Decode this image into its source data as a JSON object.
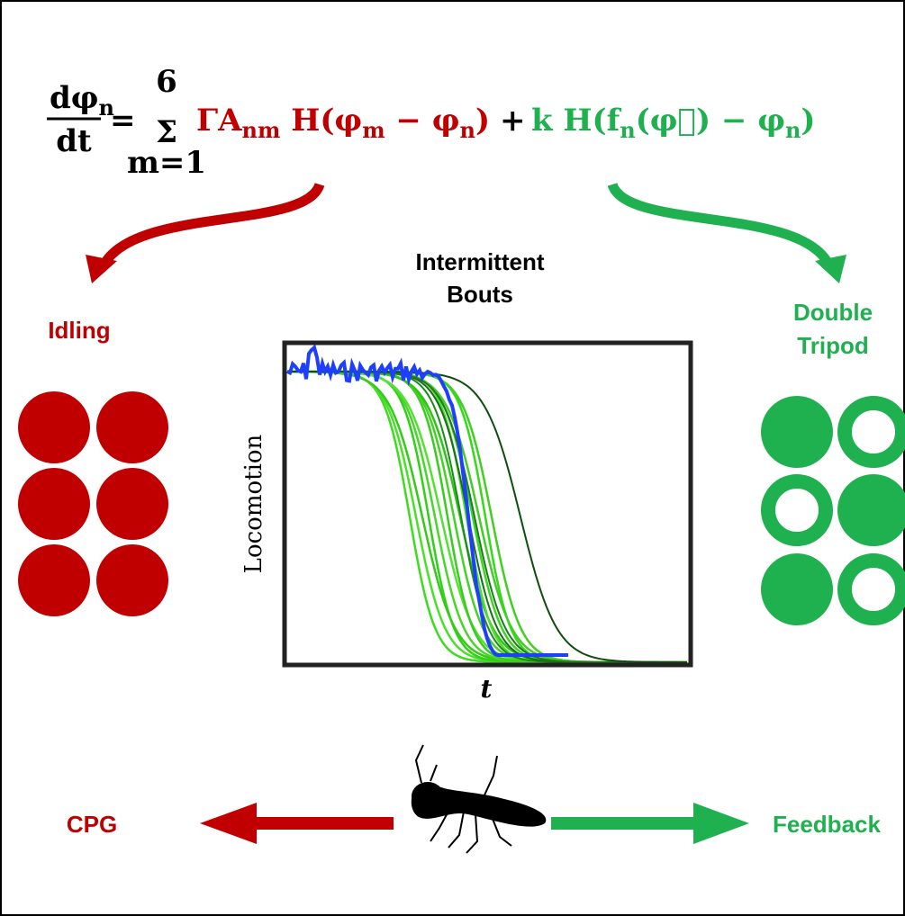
{
  "equation": {
    "lhs_num": "dφ",
    "lhs_num_sub": "n",
    "lhs_den": "dt",
    "equals": "=",
    "sum_upper": "6",
    "sum": "Σ",
    "sum_lower": "m=1",
    "cpg_term": [
      "ΓA",
      "nm",
      " H(φ",
      "m",
      " − φ",
      "n",
      ")"
    ],
    "plus": "+",
    "feedback_term": [
      "k H(f",
      "n",
      "(φ⃗) − φ",
      "n",
      ")"
    ]
  },
  "plot": {
    "title_lines": [
      "Intermittent",
      "Bouts"
    ],
    "y_label": "Locomotion",
    "x_label": "t"
  },
  "left": {
    "label": "Idling"
  },
  "right": {
    "label_lines": [
      "Double",
      "Tripod"
    ]
  },
  "bottom": {
    "left": "CPG",
    "right": "Feedback"
  }
}
